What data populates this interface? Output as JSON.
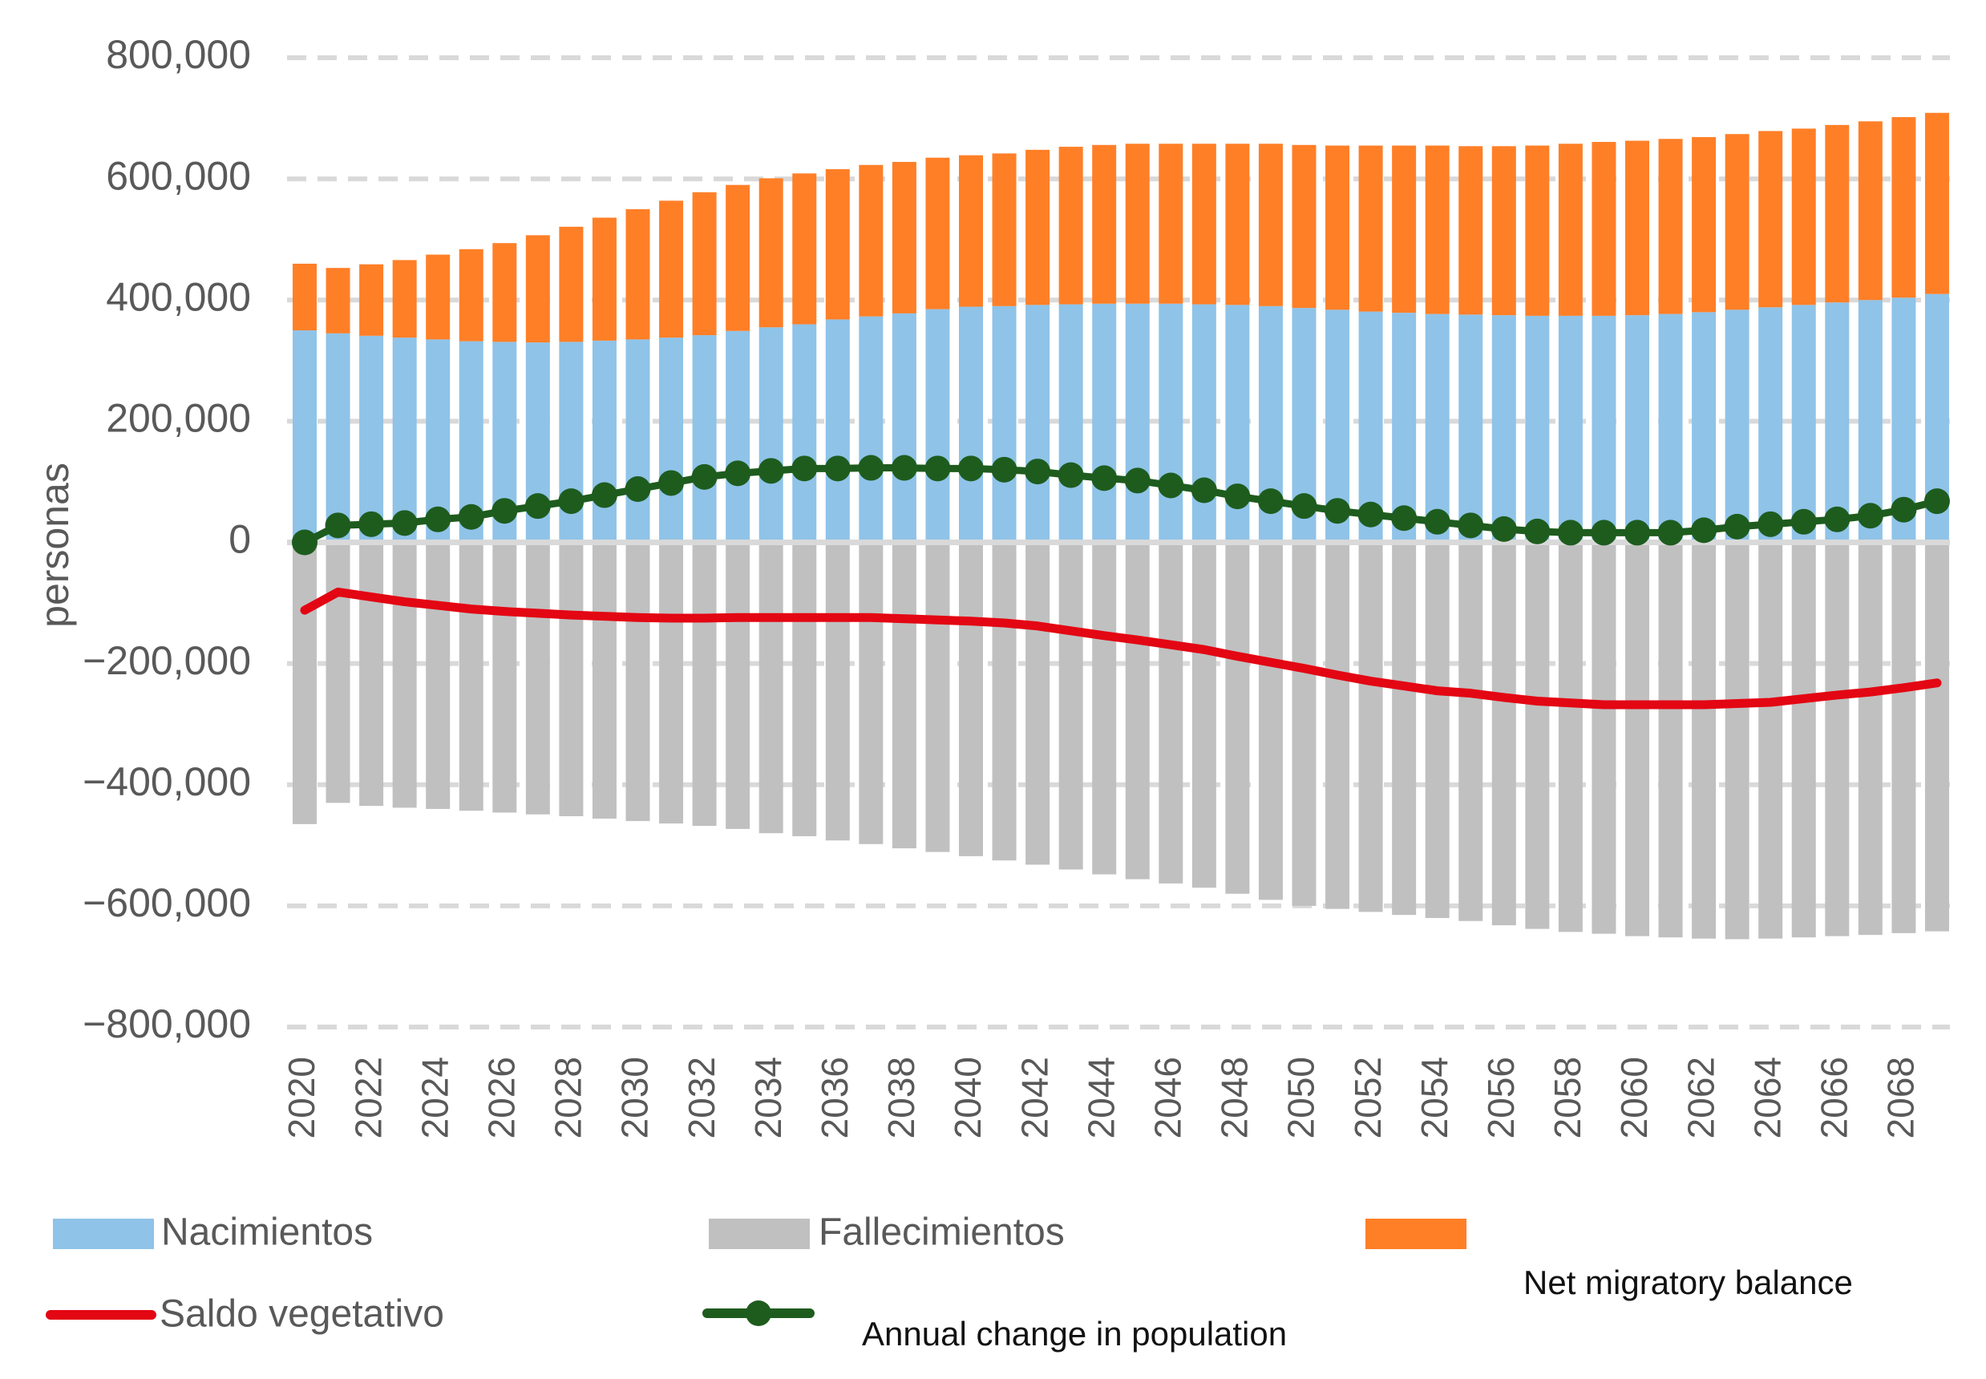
{
  "chart_data": {
    "type": "bar",
    "stacked": true,
    "title": "",
    "xlabel": "",
    "ylabel": "personas",
    "ylim": [
      -800000,
      800000
    ],
    "yticks": [
      800000,
      600000,
      400000,
      200000,
      0,
      -200000,
      -400000,
      -600000,
      -800000
    ],
    "ytick_labels": [
      "800,000",
      "600,000",
      "400,000",
      "200,000",
      "0",
      "−200,000",
      "−400,000",
      "−600,000",
      "−800,000"
    ],
    "grid": "horizontal dashed",
    "x": [
      2020,
      2021,
      2022,
      2023,
      2024,
      2025,
      2026,
      2027,
      2028,
      2029,
      2030,
      2031,
      2032,
      2033,
      2034,
      2035,
      2036,
      2037,
      2038,
      2039,
      2040,
      2041,
      2042,
      2043,
      2044,
      2045,
      2046,
      2047,
      2048,
      2049,
      2050,
      2051,
      2052,
      2053,
      2054,
      2055,
      2056,
      2057,
      2058,
      2059,
      2060,
      2061,
      2062,
      2063,
      2064,
      2065,
      2066,
      2067,
      2068,
      2069
    ],
    "xtick_labels": [
      "2020",
      "2022",
      "2024",
      "2026",
      "2028",
      "2030",
      "2032",
      "2034",
      "2036",
      "2038",
      "2040",
      "2042",
      "2044",
      "2046",
      "2048",
      "2050",
      "2052",
      "2054",
      "2056",
      "2058",
      "2060",
      "2062",
      "2064",
      "2066",
      "2068"
    ],
    "series": [
      {
        "name": "Nacimientos",
        "kind": "bar",
        "color": "#8fc3e8",
        "values": [
          350000,
          345000,
          341000,
          338000,
          335000,
          332000,
          331000,
          330000,
          331000,
          333000,
          335000,
          338000,
          342000,
          349000,
          355000,
          360000,
          368000,
          373000,
          378000,
          385000,
          389000,
          390000,
          392000,
          393000,
          394000,
          394000,
          394000,
          393000,
          392000,
          390000,
          387000,
          384000,
          381000,
          379000,
          377000,
          376000,
          375000,
          374000,
          374000,
          374000,
          375000,
          377000,
          380000,
          384000,
          388000,
          392000,
          396000,
          400000,
          404000,
          410000
        ]
      },
      {
        "name": "Fallecimientos",
        "kind": "bar",
        "color": "#c0c0c0",
        "values": [
          -465000,
          -430000,
          -435000,
          -438000,
          -440000,
          -443000,
          -446000,
          -449000,
          -452000,
          -456000,
          -460000,
          -464000,
          -468000,
          -473000,
          -480000,
          -485000,
          -492000,
          -498000,
          -505000,
          -511000,
          -518000,
          -525000,
          -532000,
          -540000,
          -548000,
          -556000,
          -563000,
          -570000,
          -580000,
          -590000,
          -600000,
          -605000,
          -610000,
          -615000,
          -620000,
          -625000,
          -632000,
          -638000,
          -643000,
          -646000,
          -650000,
          -652000,
          -654000,
          -655000,
          -654000,
          -652000,
          -650000,
          -648000,
          -645000,
          -642000
        ]
      },
      {
        "name": "Net migratory balance",
        "kind": "bar",
        "color": "#ff7f27",
        "values": [
          110000,
          108000,
          118000,
          128000,
          140000,
          152000,
          163000,
          177000,
          190000,
          203000,
          215000,
          226000,
          236000,
          241000,
          246000,
          249000,
          248000,
          250000,
          250000,
          250000,
          250000,
          252000,
          256000,
          260000,
          262000,
          264000,
          264000,
          265000,
          266000,
          268000,
          269000,
          271000,
          274000,
          276000,
          278000,
          278000,
          279000,
          281000,
          284000,
          287000,
          288000,
          289000,
          289000,
          290000,
          291000,
          291000,
          293000,
          295000,
          298000,
          299000
        ]
      },
      {
        "name": "Saldo vegetativo",
        "kind": "line",
        "color": "#e30613",
        "values": [
          -112000,
          -82000,
          -90000,
          -98000,
          -104000,
          -110000,
          -114000,
          -117000,
          -120000,
          -122000,
          -124000,
          -125000,
          -125000,
          -124000,
          -124000,
          -124000,
          -124000,
          -124000,
          -126000,
          -128000,
          -130000,
          -133000,
          -138000,
          -146000,
          -154000,
          -161000,
          -169000,
          -177000,
          -188000,
          -198000,
          -208000,
          -219000,
          -229000,
          -237000,
          -245000,
          -249000,
          -256000,
          -262000,
          -265000,
          -268000,
          -268000,
          -268000,
          -268000,
          -266000,
          -264000,
          -258000,
          -252000,
          -247000,
          -240000,
          -232000
        ]
      },
      {
        "name": "Annual change in population",
        "kind": "line",
        "color": "#1e5c1e",
        "values": [
          0,
          28000,
          30000,
          32000,
          38000,
          42000,
          52000,
          60000,
          68000,
          78000,
          88000,
          98000,
          108000,
          114000,
          118000,
          122000,
          122000,
          123000,
          123000,
          122000,
          122000,
          120000,
          117000,
          111000,
          106000,
          102000,
          94000,
          86000,
          76000,
          68000,
          60000,
          52000,
          46000,
          40000,
          34000,
          28000,
          22000,
          18000,
          16000,
          16000,
          16000,
          16000,
          20000,
          26000,
          30000,
          34000,
          38000,
          44000,
          54000,
          68000
        ]
      }
    ],
    "legend": [
      {
        "label": "Nacimientos",
        "swatch": "box",
        "color": "#8fc3e8"
      },
      {
        "label": "Fallecimientos",
        "swatch": "box",
        "color": "#c0c0c0"
      },
      {
        "label": "Net migratory balance",
        "swatch": "box",
        "color": "#ff7f27"
      },
      {
        "label": "Saldo vegetativo",
        "swatch": "line",
        "color": "#e30613"
      },
      {
        "label": "Annual change in population",
        "swatch": "line-marker",
        "color": "#1e5c1e"
      }
    ],
    "legend_position": "bottom"
  }
}
